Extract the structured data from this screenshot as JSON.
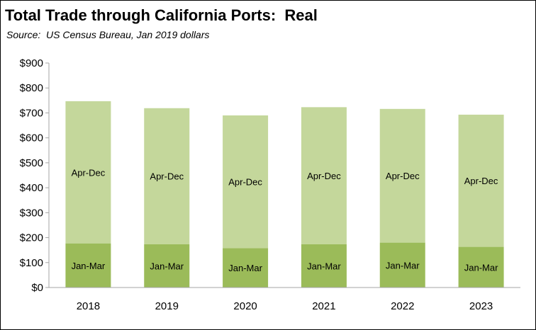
{
  "title": "Total Trade through California Ports:  Real",
  "subtitle": "Source:  US Census Bureau, Jan 2019 dollars",
  "chart_data": {
    "type": "bar",
    "stacked": true,
    "title": "Total Trade through California Ports:  Real",
    "subtitle": "Source:  US Census Bureau, Jan 2019 dollars",
    "categories": [
      "2018",
      "2019",
      "2020",
      "2021",
      "2022",
      "2023"
    ],
    "series": [
      {
        "name": "Jan-Mar",
        "values": [
          177,
          174,
          158,
          174,
          180,
          163
        ],
        "color": "#9bbb59"
      },
      {
        "name": "Apr-Dec",
        "values": [
          570,
          545,
          532,
          549,
          536,
          530
        ],
        "color": "#c4d79b"
      }
    ],
    "ylim": [
      0,
      900
    ],
    "yticks": [
      0,
      100,
      200,
      300,
      400,
      500,
      600,
      700,
      800,
      900
    ],
    "ytick_labels": [
      "$0",
      "$100",
      "$200",
      "$300",
      "$400",
      "$500",
      "$600",
      "$700",
      "$800",
      "$900"
    ],
    "xlabel": "",
    "ylabel": "",
    "grid": false,
    "legend": "none"
  }
}
